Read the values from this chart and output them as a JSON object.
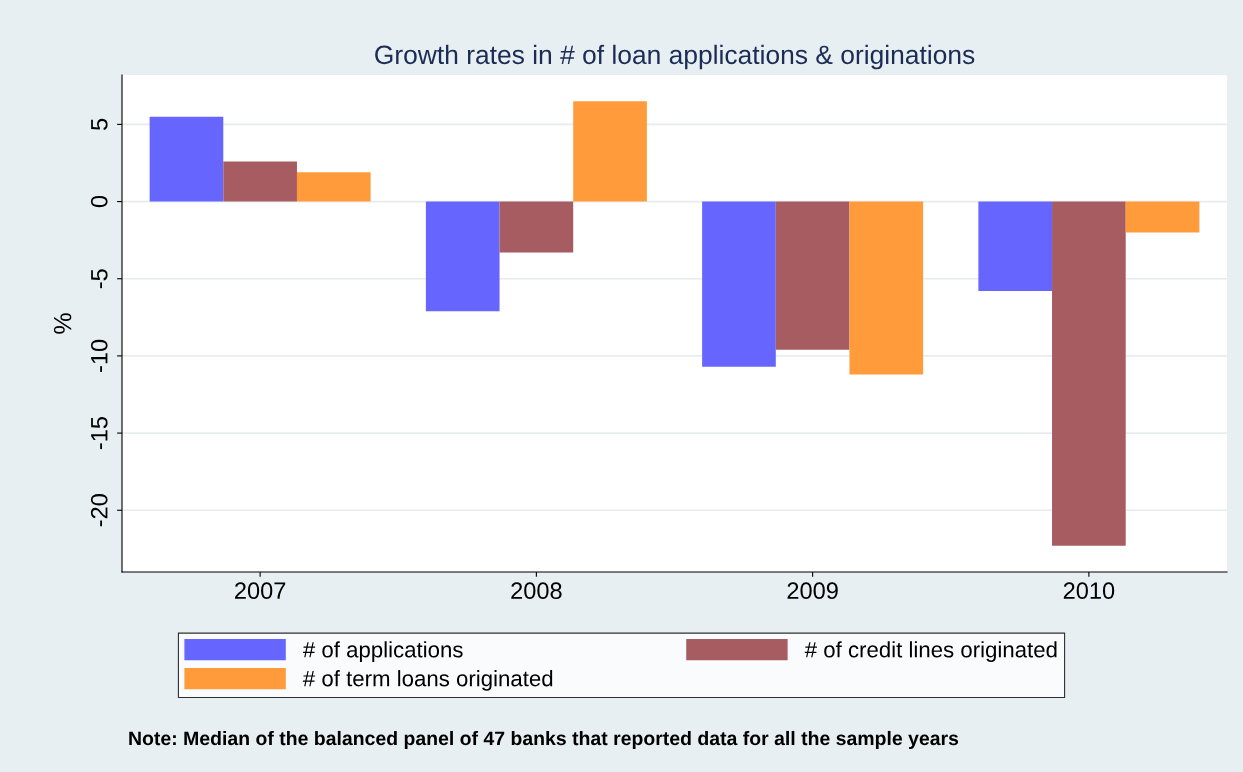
{
  "chart_data": {
    "type": "bar",
    "title": "Growth rates in # of loan applications & originations",
    "ylabel": "%",
    "categories": [
      "2007",
      "2008",
      "2009",
      "2010"
    ],
    "series": [
      {
        "name": "# of applications",
        "color": "#6666ff",
        "values": [
          5.5,
          -7.1,
          -10.7,
          -5.8
        ]
      },
      {
        "name": "# of credit lines originated",
        "color": "#a65c60",
        "values": [
          2.6,
          -3.3,
          -9.6,
          -22.3
        ]
      },
      {
        "name": "# of term loans originated",
        "color": "#ff9b3b",
        "values": [
          1.9,
          6.5,
          -11.2,
          -2.0
        ]
      }
    ],
    "ylim": [
      -24,
      8.2
    ],
    "yticks": [
      -20,
      -15,
      -10,
      -5,
      0,
      5
    ],
    "grid": "y",
    "legend": "bottom",
    "annotations": [
      "Note: Median of the balanced panel of 47 banks that reported data for all the sample years"
    ]
  }
}
